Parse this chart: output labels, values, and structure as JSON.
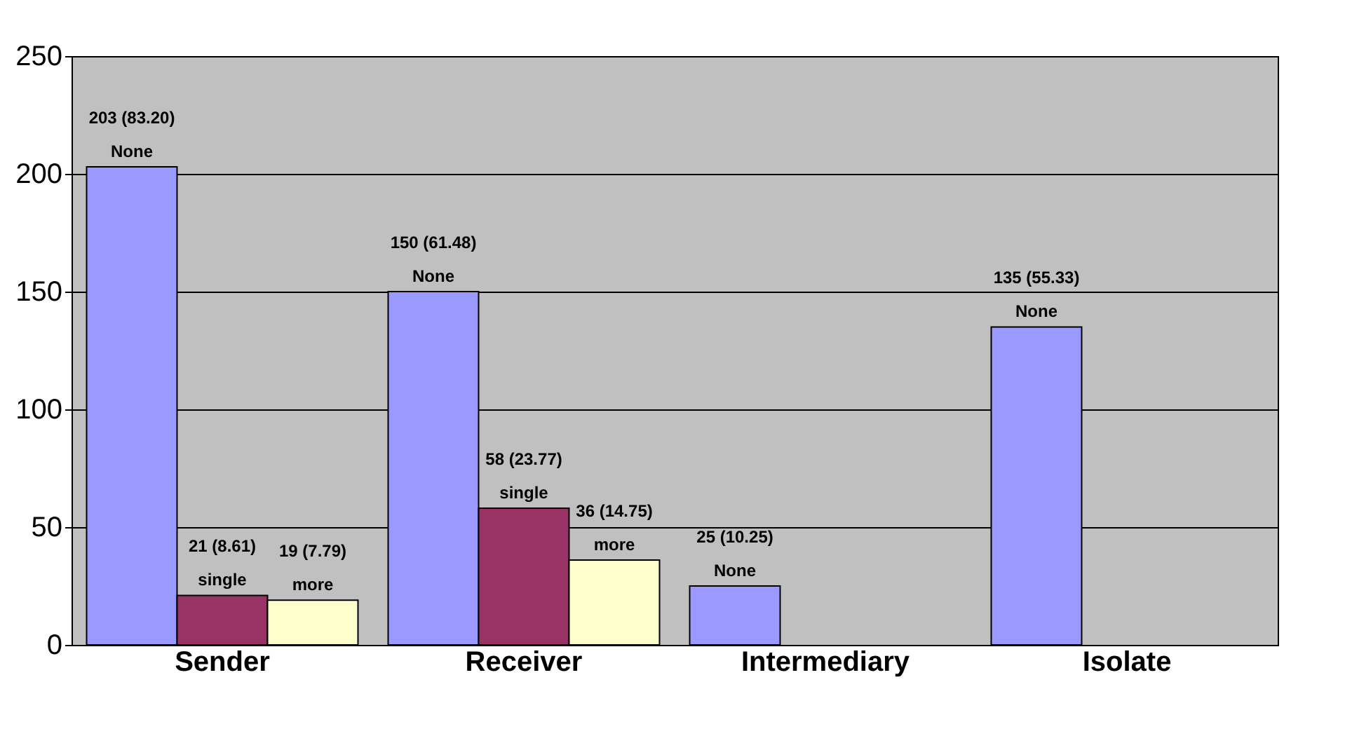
{
  "chart_data": {
    "type": "bar",
    "categories": [
      "Sender",
      "Receiver",
      "Intermediary",
      "Isolate"
    ],
    "series": [
      {
        "name": "None",
        "color": "#9999ff",
        "values": [
          203,
          150,
          25,
          135
        ],
        "value_labels": [
          "203 (83.20)",
          "150 (61.48)",
          "25 (10.25)",
          "135 (55.33)"
        ]
      },
      {
        "name": "single",
        "color": "#993366",
        "values": [
          21,
          58,
          null,
          null
        ],
        "value_labels": [
          "21 (8.61)",
          "58 (23.77)",
          null,
          null
        ]
      },
      {
        "name": "more",
        "color": "#ffffcc",
        "values": [
          19,
          36,
          null,
          null
        ],
        "value_labels": [
          "19 (7.79)",
          "36 (14.75)",
          null,
          null
        ]
      }
    ],
    "ylim": [
      0,
      250
    ],
    "yticks": [
      0,
      50,
      100,
      150,
      200,
      250
    ],
    "grid": "y",
    "legend": false
  }
}
